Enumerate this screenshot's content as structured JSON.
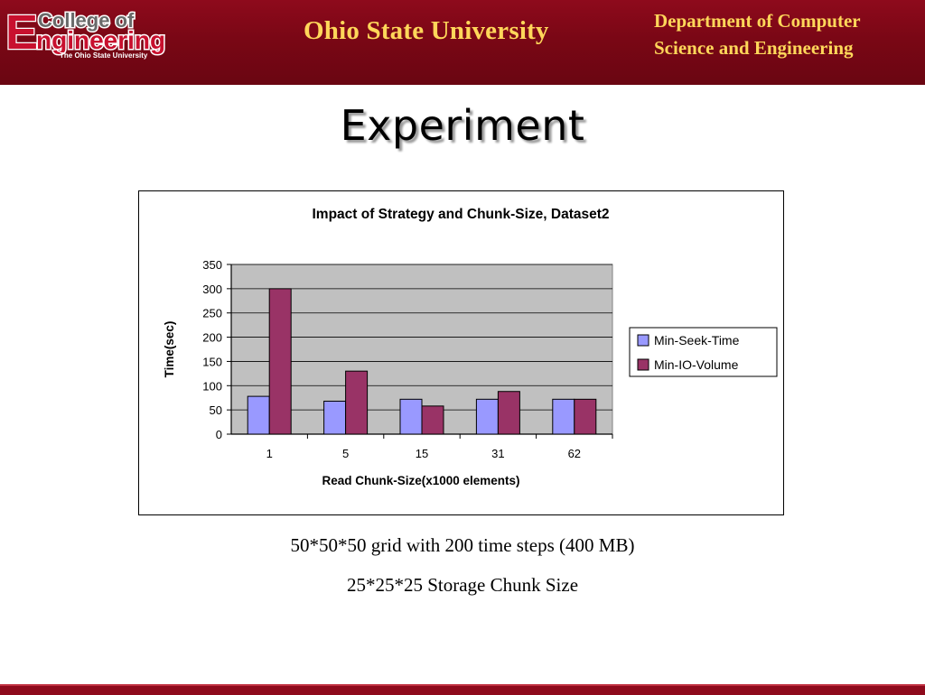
{
  "header": {
    "logo": {
      "letter": "E",
      "college": "College of",
      "word": "ngineering",
      "subtitle": "The Ohio State University"
    },
    "university": "Ohio State University",
    "department_line1": "Department of Computer",
    "department_line2": "Science and Engineering"
  },
  "slide": {
    "title": "Experiment",
    "caption1": "50*50*50 grid with 200 time steps (400 MB)",
    "caption2": "25*25*25 Storage Chunk Size"
  },
  "colors": {
    "header_red": "#7a0715",
    "header_text": "#ffd75a",
    "series_min_seek": "#9999ff",
    "series_min_io": "#993366",
    "plot_background": "#c0c0c0"
  },
  "chart_data": {
    "type": "bar",
    "title": "Impact of Strategy and Chunk-Size, Dataset2",
    "xlabel": "Read Chunk-Size(x1000 elements)",
    "ylabel": "Time(sec)",
    "categories": [
      "1",
      "5",
      "15",
      "31",
      "62"
    ],
    "series": [
      {
        "name": "Min-Seek-Time",
        "values": [
          78,
          68,
          72,
          72,
          72
        ]
      },
      {
        "name": "Min-IO-Volume",
        "values": [
          300,
          130,
          58,
          88,
          72
        ]
      }
    ],
    "ylim": [
      0,
      350
    ],
    "yticks": [
      "0",
      "50",
      "100",
      "150",
      "200",
      "250",
      "300",
      "350"
    ],
    "grid": true,
    "legend": "right"
  }
}
